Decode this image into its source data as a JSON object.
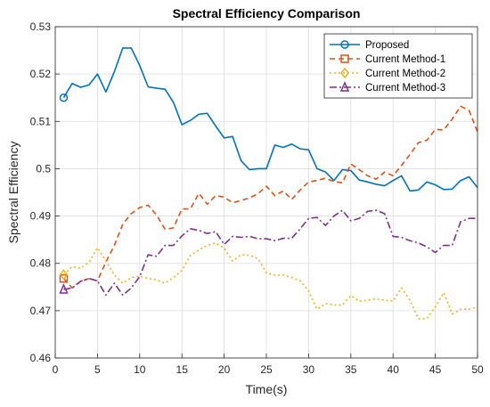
{
  "chart_data": {
    "type": "line",
    "title": "Spectral Efficiency Comparison",
    "xlabel": "Time(s)",
    "ylabel": "Spectral Efficiency",
    "xlim": [
      0,
      50
    ],
    "ylim": [
      0.46,
      0.53
    ],
    "xticks": [
      "0",
      "5",
      "10",
      "15",
      "20",
      "25",
      "30",
      "35",
      "40",
      "45",
      "50"
    ],
    "yticks": [
      "0.46",
      "0.47",
      "0.48",
      "0.49",
      "0.5",
      "0.51",
      "0.52",
      "0.53"
    ],
    "grid": true,
    "legend_position": "top-right",
    "x": [
      1,
      2,
      3,
      4,
      5,
      6,
      7,
      8,
      9,
      10,
      11,
      12,
      13,
      14,
      15,
      16,
      17,
      18,
      19,
      20,
      21,
      22,
      23,
      24,
      25,
      26,
      27,
      28,
      29,
      30,
      31,
      32,
      33,
      34,
      35,
      36,
      37,
      38,
      39,
      40,
      41,
      42,
      43,
      44,
      45,
      46,
      47,
      48,
      49,
      50
    ],
    "series": [
      {
        "name": "Proposed",
        "color": "#0072bd",
        "dash": "",
        "marker": "circle",
        "values": [
          0.515,
          0.518,
          0.5172,
          0.5177,
          0.52,
          0.5162,
          0.5205,
          0.5255,
          0.5255,
          0.5218,
          0.5173,
          0.517,
          0.5168,
          0.514,
          0.5093,
          0.5102,
          0.5115,
          0.5117,
          0.509,
          0.5065,
          0.5068,
          0.5017,
          0.4998,
          0.5,
          0.5,
          0.505,
          0.5045,
          0.5052,
          0.5042,
          0.504,
          0.5,
          0.4993,
          0.4975,
          0.4998,
          0.4996,
          0.4976,
          0.4972,
          0.4967,
          0.4964,
          0.4975,
          0.4985,
          0.4953,
          0.4955,
          0.4972,
          0.4966,
          0.4956,
          0.4957,
          0.4975,
          0.4983,
          0.496
        ]
      },
      {
        "name": "Current Method-1",
        "color": "#d95319",
        "dash": "6,4",
        "marker": "square",
        "values": [
          0.4768,
          0.4748,
          0.4762,
          0.4768,
          0.4763,
          0.4803,
          0.4838,
          0.4883,
          0.4905,
          0.4918,
          0.4923,
          0.4902,
          0.4872,
          0.4875,
          0.4915,
          0.4915,
          0.4948,
          0.4925,
          0.4943,
          0.494,
          0.4928,
          0.4933,
          0.4938,
          0.4947,
          0.4963,
          0.4943,
          0.4953,
          0.4935,
          0.4955,
          0.4972,
          0.4975,
          0.498,
          0.4973,
          0.497,
          0.501,
          0.4998,
          0.4985,
          0.4978,
          0.4993,
          0.4985,
          0.5007,
          0.503,
          0.5055,
          0.506,
          0.5083,
          0.5082,
          0.5105,
          0.5132,
          0.5123,
          0.5078
        ]
      },
      {
        "name": "Current Method-2",
        "color": "#edb120",
        "dash": "2,3",
        "marker": "diamond",
        "values": [
          0.4776,
          0.4793,
          0.479,
          0.4802,
          0.4833,
          0.4805,
          0.4775,
          0.4758,
          0.477,
          0.4773,
          0.4768,
          0.4765,
          0.4758,
          0.477,
          0.4785,
          0.4817,
          0.4828,
          0.4838,
          0.4843,
          0.4832,
          0.4805,
          0.4818,
          0.4817,
          0.481,
          0.478,
          0.4775,
          0.4775,
          0.477,
          0.4763,
          0.4742,
          0.4703,
          0.4715,
          0.4712,
          0.4712,
          0.4732,
          0.472,
          0.4722,
          0.4725,
          0.4722,
          0.472,
          0.4748,
          0.4722,
          0.4683,
          0.4683,
          0.4708,
          0.4738,
          0.4693,
          0.4703,
          0.4703,
          0.4708
        ]
      },
      {
        "name": "Current Method-3",
        "color": "#7e2f8e",
        "dash": "8,3,2,3",
        "marker": "triangle",
        "values": [
          0.4745,
          0.4748,
          0.4762,
          0.4768,
          0.4763,
          0.4733,
          0.4758,
          0.4733,
          0.4748,
          0.4772,
          0.4818,
          0.4815,
          0.4838,
          0.4838,
          0.4858,
          0.4873,
          0.487,
          0.4863,
          0.4867,
          0.484,
          0.4857,
          0.4855,
          0.4857,
          0.4852,
          0.4852,
          0.4848,
          0.4853,
          0.4853,
          0.4873,
          0.4895,
          0.4897,
          0.488,
          0.49,
          0.4912,
          0.489,
          0.4895,
          0.491,
          0.4912,
          0.4905,
          0.4857,
          0.4855,
          0.4848,
          0.4843,
          0.4835,
          0.4823,
          0.4838,
          0.4838,
          0.4888,
          0.4895,
          0.4895
        ]
      }
    ]
  }
}
